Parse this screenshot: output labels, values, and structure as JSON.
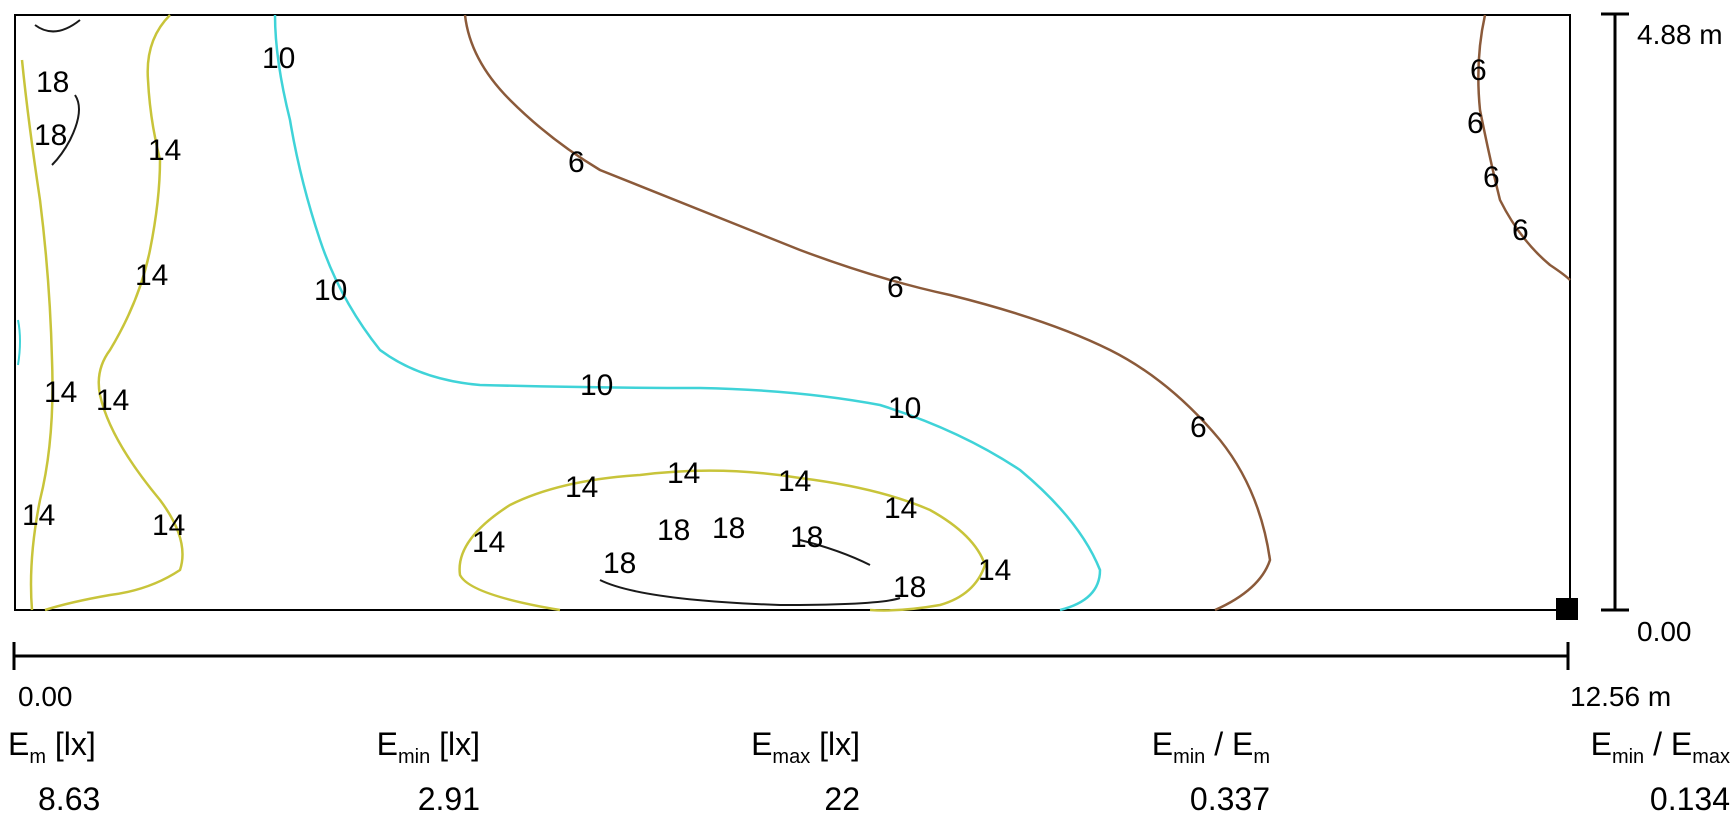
{
  "plot": {
    "y_axis": {
      "top_label": "4.88 m",
      "bottom_label": "0.00"
    },
    "x_axis": {
      "left_label": "0.00",
      "right_label": "12.56 m"
    },
    "isolines": [
      {
        "level": "6",
        "color": "#8b5a3a"
      },
      {
        "level": "10",
        "color": "#3fd3d8"
      },
      {
        "level": "14",
        "color": "#c8c43a"
      },
      {
        "level": "18",
        "color": "#1a1a1a"
      }
    ],
    "contour_labels": [
      "18",
      "18",
      "14",
      "14",
      "14",
      "14",
      "14",
      "14",
      "10",
      "10",
      "10",
      "10",
      "6",
      "6",
      "6",
      "6",
      "6",
      "6",
      "6",
      "14",
      "14",
      "14",
      "14",
      "14",
      "14",
      "18",
      "18",
      "18",
      "18",
      "18"
    ]
  },
  "stats": [
    {
      "symbol": "E",
      "sub": "m",
      "unit": " [lx]",
      "value": "8.63"
    },
    {
      "symbol": "E",
      "sub": "min",
      "unit": " [lx]",
      "value": "2.91"
    },
    {
      "symbol": "E",
      "sub": "max",
      "unit": " [lx]",
      "value": "22"
    },
    {
      "symbol": "E",
      "sub": "min",
      "unit": " / E",
      "sub2": "m",
      "value": "0.337"
    },
    {
      "symbol": "E",
      "sub": "min",
      "unit": " / E",
      "sub2": "max",
      "value": "0.134"
    }
  ]
}
